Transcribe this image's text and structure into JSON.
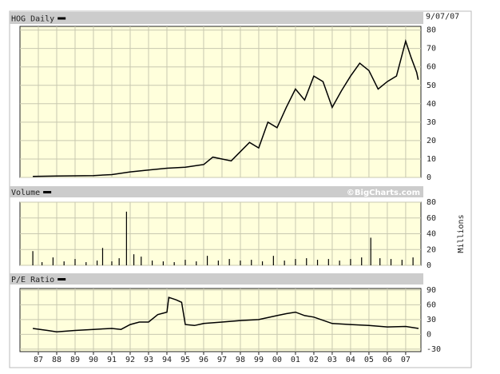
{
  "chart_data": [
    {
      "type": "line",
      "title": "HOG Daily",
      "date": "9/07/07",
      "xlim": [
        1986,
        2007.83
      ],
      "ylim": [
        0,
        82
      ],
      "yticks": [
        0,
        10,
        20,
        30,
        40,
        50,
        60,
        70,
        80
      ],
      "grid": true,
      "series": [
        {
          "name": "HOG",
          "color": "#000000",
          "x": [
            1986.7,
            1988,
            1990,
            1991,
            1992,
            1993,
            1994,
            1995,
            1996,
            1996.5,
            1997,
            1997.5,
            1998,
            1998.5,
            1999,
            1999.5,
            2000,
            2000.5,
            2001,
            2001.5,
            2002,
            2002.5,
            2003,
            2003.5,
            2004,
            2004.5,
            2005,
            2005.5,
            2006,
            2006.5,
            2007,
            2007.3,
            2007.6,
            2007.68
          ],
          "values": [
            0.5,
            0.8,
            1,
            1.5,
            3,
            4,
            5,
            5.5,
            7,
            11,
            10,
            9,
            14,
            19,
            16,
            30,
            27,
            38,
            48,
            42,
            55,
            52,
            38,
            47,
            55,
            62,
            58,
            48,
            52,
            55,
            74,
            65,
            57,
            53
          ]
        }
      ]
    },
    {
      "type": "bar",
      "title": "Volume",
      "credit": "©BigCharts.com",
      "y_label": "Millions",
      "xlim": [
        1986,
        2007.83
      ],
      "ylim": [
        0,
        80
      ],
      "yticks": [
        0,
        20,
        40,
        60,
        80
      ],
      "grid": true,
      "series": [
        {
          "name": "Volume",
          "color": "#000000",
          "x": [
            1986.7,
            1987.2,
            1987.8,
            1988.4,
            1989,
            1989.6,
            1990.2,
            1990.5,
            1991,
            1991.4,
            1991.8,
            1992.2,
            1992.6,
            1993.2,
            1993.8,
            1994.4,
            1995,
            1995.6,
            1996.2,
            1996.8,
            1997.4,
            1998,
            1998.6,
            1999.2,
            1999.8,
            2000.4,
            2001,
            2001.6,
            2002.2,
            2002.8,
            2003.4,
            2004,
            2004.6,
            2005.1,
            2005.6,
            2006.2,
            2006.8,
            2007.4
          ],
          "values": [
            18,
            4,
            10,
            5,
            8,
            4,
            6,
            22,
            5,
            9,
            68,
            14,
            11,
            6,
            5,
            4,
            7,
            5,
            12,
            6,
            8,
            6,
            7,
            5,
            12,
            6,
            8,
            9,
            7,
            8,
            6,
            8,
            10,
            35,
            9,
            8,
            7,
            10
          ]
        }
      ]
    },
    {
      "type": "line",
      "title": "P/E Ratio",
      "xlim": [
        1986,
        2007.83
      ],
      "ylim": [
        -35,
        93
      ],
      "yticks": [
        -30,
        0,
        30,
        60,
        90
      ],
      "grid": true,
      "xticks": [
        {
          "value": 1987,
          "label": "87"
        },
        {
          "value": 1988,
          "label": "88"
        },
        {
          "value": 1989,
          "label": "89"
        },
        {
          "value": 1990,
          "label": "90"
        },
        {
          "value": 1991,
          "label": "91"
        },
        {
          "value": 1992,
          "label": "92"
        },
        {
          "value": 1993,
          "label": "93"
        },
        {
          "value": 1994,
          "label": "94"
        },
        {
          "value": 1995,
          "label": "95"
        },
        {
          "value": 1996,
          "label": "96"
        },
        {
          "value": 1997,
          "label": "97"
        },
        {
          "value": 1998,
          "label": "98"
        },
        {
          "value": 1999,
          "label": "99"
        },
        {
          "value": 2000,
          "label": "00"
        },
        {
          "value": 2001,
          "label": "01"
        },
        {
          "value": 2002,
          "label": "02"
        },
        {
          "value": 2003,
          "label": "03"
        },
        {
          "value": 2004,
          "label": "04"
        },
        {
          "value": 2005,
          "label": "05"
        },
        {
          "value": 2006,
          "label": "06"
        },
        {
          "value": 2007,
          "label": "07"
        }
      ],
      "series": [
        {
          "name": "P/E Ratio",
          "color": "#000000",
          "x": [
            1986.7,
            1987.5,
            1988,
            1989,
            1990,
            1991,
            1991.5,
            1992,
            1992.5,
            1993,
            1993.5,
            1994,
            1994.1,
            1994.5,
            1994.8,
            1995,
            1995.5,
            1996,
            1997,
            1998,
            1999,
            2000,
            2000.5,
            2001,
            2001.5,
            2002,
            2003,
            2004,
            2005,
            2006,
            2007,
            2007.7
          ],
          "values": [
            12,
            8,
            5,
            8,
            10,
            12,
            10,
            20,
            25,
            25,
            40,
            45,
            75,
            70,
            65,
            20,
            18,
            22,
            25,
            28,
            30,
            38,
            42,
            45,
            38,
            35,
            22,
            20,
            18,
            15,
            16,
            12
          ]
        }
      ]
    }
  ]
}
